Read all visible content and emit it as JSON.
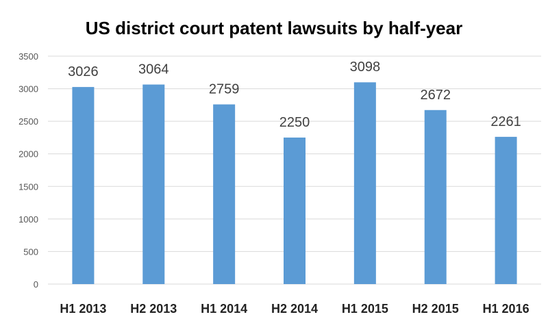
{
  "chart_data": {
    "type": "bar",
    "title": "US district court patent lawsuits by half-year",
    "xlabel": "",
    "ylabel": "",
    "categories": [
      "H1 2013",
      "H2 2013",
      "H1 2014",
      "H2 2014",
      "H1 2015",
      "H2 2015",
      "H1 2016"
    ],
    "values": [
      3026,
      3064,
      2759,
      2250,
      3098,
      2672,
      2261
    ],
    "ylim": [
      0,
      3500
    ],
    "yticks": [
      0,
      500,
      1000,
      1500,
      2000,
      2500,
      3000,
      3500
    ],
    "grid": true,
    "legend": "none",
    "data_labels": true,
    "colors": {
      "bar": "#5b9bd5",
      "grid": "#d9d9d9"
    }
  }
}
